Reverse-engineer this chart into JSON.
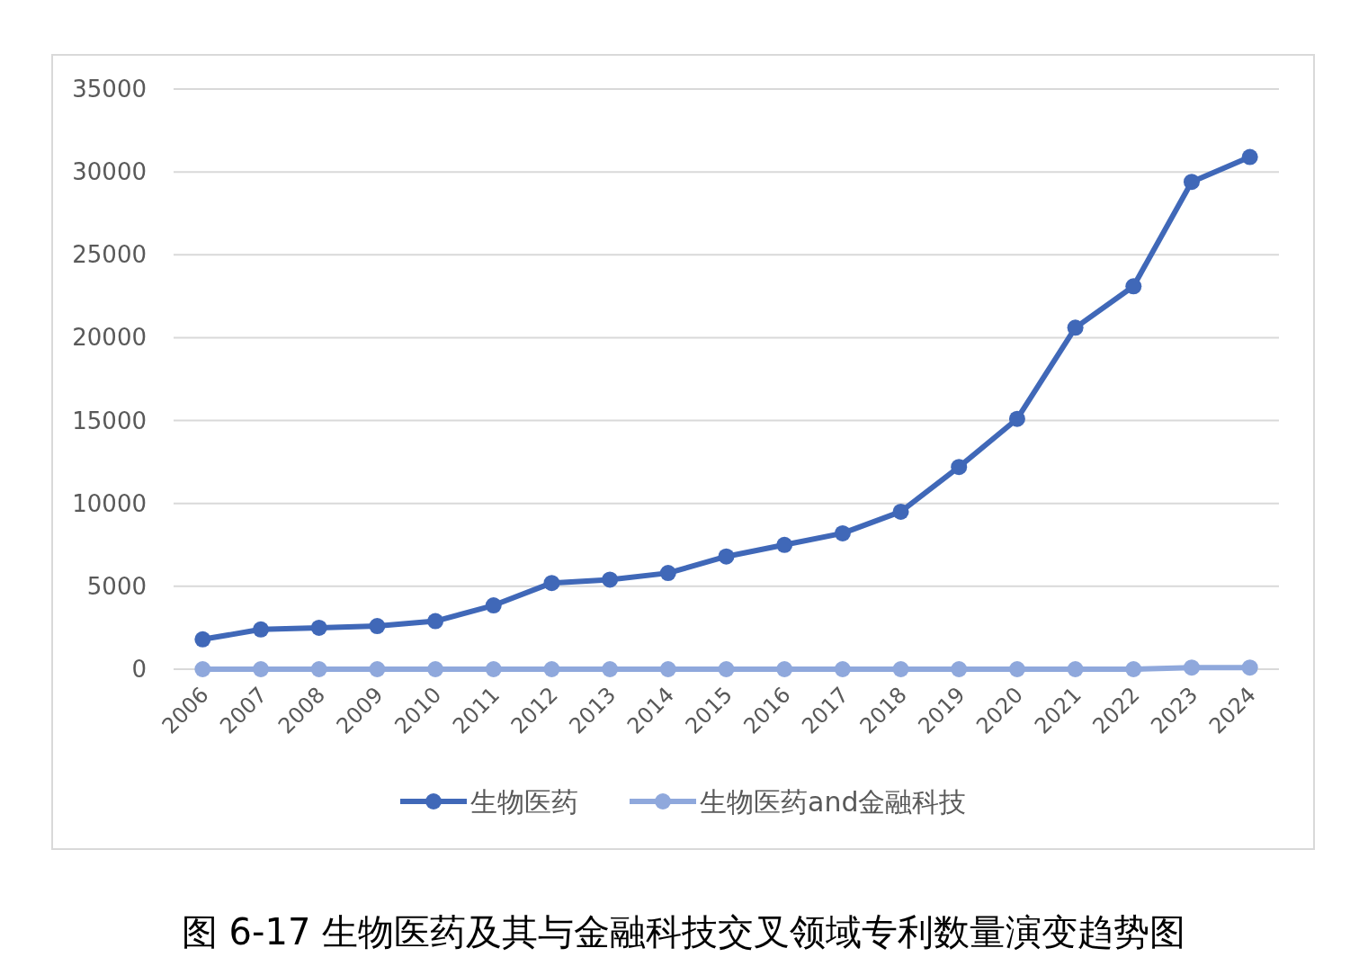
{
  "chart_data": {
    "type": "line",
    "title": "图 6-17 生物医药及其与金融科技交叉领域专利数量演变趋势图",
    "categories": [
      "2006",
      "2007",
      "2008",
      "2009",
      "2010",
      "2011",
      "2012",
      "2013",
      "2014",
      "2015",
      "2016",
      "2017",
      "2018",
      "2019",
      "2020",
      "2021",
      "2022",
      "2023",
      "2024"
    ],
    "series": [
      {
        "name": "生物医药",
        "color": "#4068b8",
        "values": [
          1800,
          2400,
          2500,
          2600,
          2900,
          3850,
          5200,
          5400,
          5800,
          6800,
          7500,
          8200,
          9500,
          12200,
          15100,
          20600,
          23100,
          29400,
          30900
        ]
      },
      {
        "name": "生物医药and金融科技",
        "color": "#8fa8dc",
        "values": [
          0,
          0,
          0,
          0,
          0,
          0,
          0,
          0,
          0,
          0,
          0,
          0,
          0,
          0,
          0,
          0,
          0,
          100,
          100
        ]
      }
    ],
    "ylim": [
      0,
      35000
    ],
    "yticks": [
      0,
      5000,
      10000,
      15000,
      20000,
      25000,
      30000,
      35000
    ],
    "grid": "y",
    "legend": "bottom",
    "marker": "circle",
    "line_style": "solid"
  }
}
